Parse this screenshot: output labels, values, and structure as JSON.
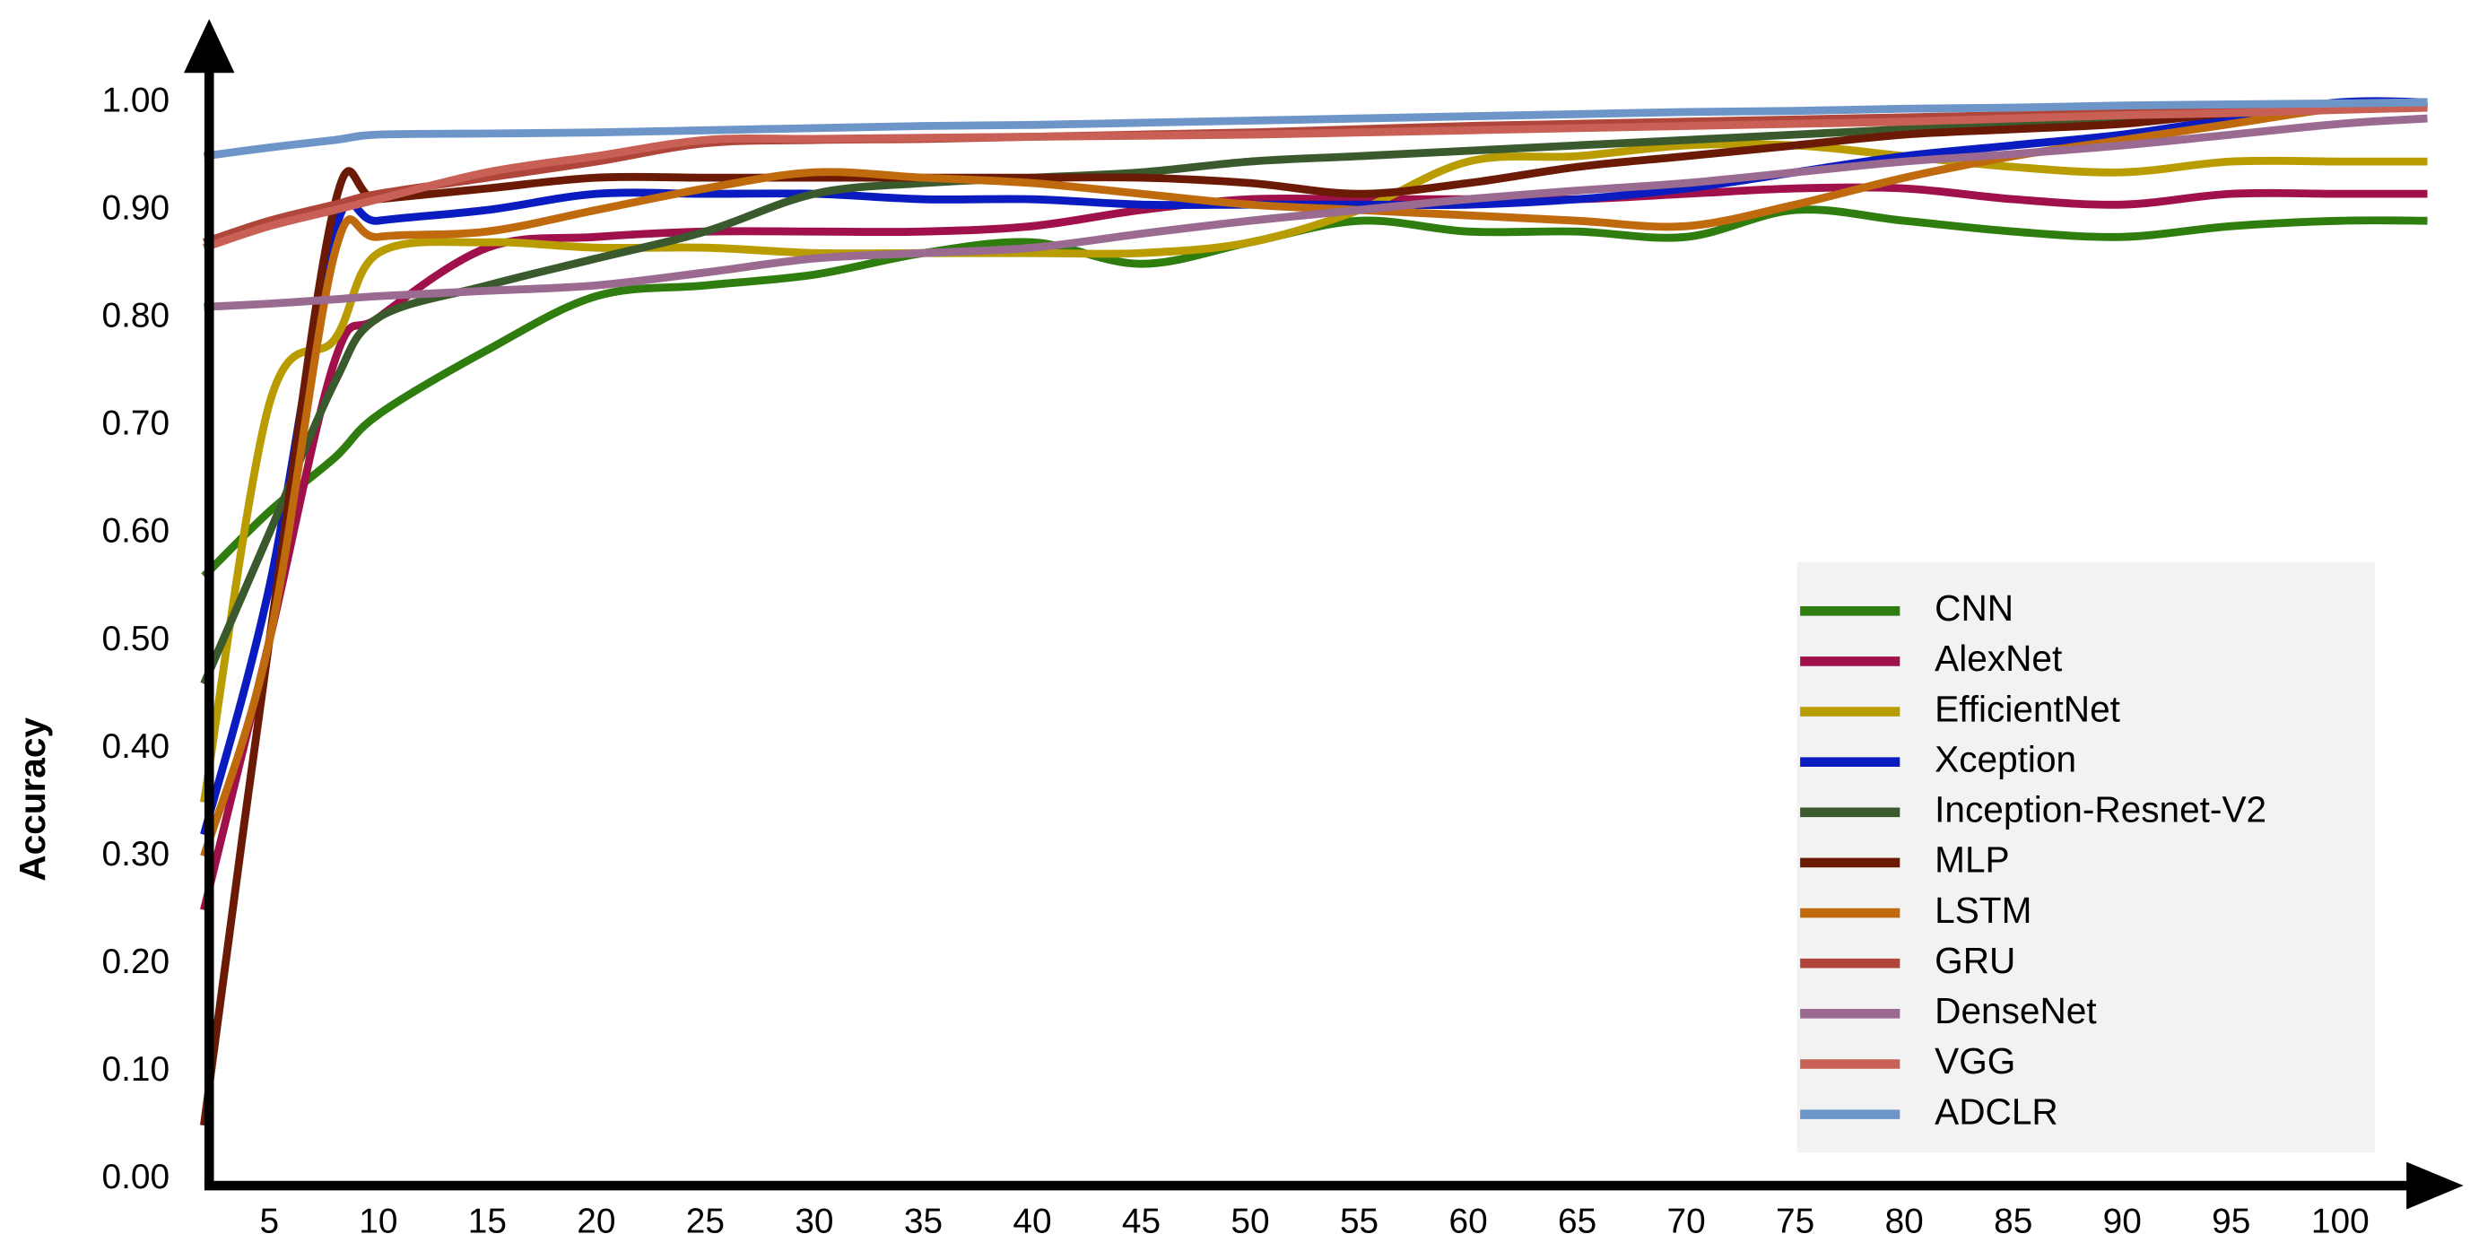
{
  "chart_data": {
    "type": "line",
    "ylabel": "Accuracy",
    "x": [
      2,
      5,
      8,
      10,
      15,
      20,
      25,
      30,
      35,
      40,
      45,
      50,
      55,
      60,
      65,
      70,
      75,
      80,
      85,
      90,
      95,
      100,
      104
    ],
    "xlim": [
      2.24,
      105
    ],
    "xticks": [
      5,
      10,
      15,
      20,
      25,
      30,
      35,
      40,
      45,
      50,
      55,
      60,
      65,
      70,
      75,
      80,
      85,
      90,
      95,
      100
    ],
    "ylim": [
      0,
      1.07
    ],
    "yticks": [
      {
        "value": 0,
        "label": "0.00"
      },
      {
        "value": 0.1,
        "label": "0.10"
      },
      {
        "value": 0.2,
        "label": "0.20"
      },
      {
        "value": 0.3,
        "label": "0.30"
      },
      {
        "value": 0.4,
        "label": "0.40"
      },
      {
        "value": 0.5,
        "label": "0.50"
      },
      {
        "value": 0.6,
        "label": "0.60"
      },
      {
        "value": 0.7,
        "label": "0.70"
      },
      {
        "value": 0.8,
        "label": "0.80"
      },
      {
        "value": 0.9,
        "label": "0.90"
      },
      {
        "value": 1,
        "label": "1.00"
      }
    ],
    "grid": false,
    "legend": "lower right",
    "series": [
      {
        "name": "CNN",
        "color": "#2e7d0e",
        "values": [
          0.56,
          0.62,
          0.67,
          0.71,
          0.77,
          0.82,
          0.83,
          0.84,
          0.86,
          0.87,
          0.85,
          0.87,
          0.89,
          0.88,
          0.88,
          0.875,
          0.9,
          0.89,
          0.88,
          0.875,
          0.885,
          0.89,
          0.89
        ]
      },
      {
        "name": "AlexNet",
        "color": "#a0104a",
        "values": [
          0.25,
          0.5,
          0.76,
          0.8,
          0.865,
          0.875,
          0.88,
          0.88,
          0.88,
          0.885,
          0.9,
          0.91,
          0.91,
          0.91,
          0.91,
          0.915,
          0.92,
          0.92,
          0.91,
          0.905,
          0.915,
          0.915,
          0.915
        ]
      },
      {
        "name": "EfficientNet",
        "color": "#b89c00",
        "values": [
          0.35,
          0.72,
          0.78,
          0.86,
          0.87,
          0.865,
          0.865,
          0.86,
          0.86,
          0.86,
          0.86,
          0.87,
          0.9,
          0.945,
          0.95,
          0.96,
          0.96,
          0.95,
          0.94,
          0.935,
          0.945,
          0.945,
          0.945
        ]
      },
      {
        "name": "Xception",
        "color": "#0a1cc0",
        "values": [
          0.32,
          0.55,
          0.88,
          0.89,
          0.9,
          0.915,
          0.915,
          0.915,
          0.91,
          0.91,
          0.905,
          0.905,
          0.905,
          0.905,
          0.91,
          0.92,
          0.935,
          0.95,
          0.96,
          0.97,
          0.985,
          1,
          1
        ]
      },
      {
        "name": "Inception-Resnet-V2",
        "color": "#3a5a2e",
        "values": [
          0.46,
          0.6,
          0.74,
          0.8,
          0.83,
          0.855,
          0.88,
          0.915,
          0.925,
          0.93,
          0.935,
          0.945,
          0.95,
          0.955,
          0.96,
          0.965,
          0.97,
          0.975,
          0.98,
          0.985,
          0.99,
          0.995,
          1
        ]
      },
      {
        "name": "MLP",
        "color": "#6b1a05",
        "values": [
          0.05,
          0.5,
          0.905,
          0.91,
          0.92,
          0.93,
          0.93,
          0.93,
          0.93,
          0.93,
          0.93,
          0.925,
          0.915,
          0.925,
          0.94,
          0.95,
          0.96,
          0.97,
          0.975,
          0.98,
          0.99,
          0.995,
          1
        ]
      },
      {
        "name": "LSTM",
        "color": "#c06a0e",
        "values": [
          0.3,
          0.5,
          0.86,
          0.875,
          0.88,
          0.9,
          0.92,
          0.935,
          0.93,
          0.925,
          0.915,
          0.905,
          0.9,
          0.895,
          0.89,
          0.885,
          0.905,
          0.93,
          0.95,
          0.965,
          0.98,
          0.995,
          1
        ]
      },
      {
        "name": "GRU",
        "color": "#b0453a",
        "values": [
          0.87,
          0.89,
          0.905,
          0.915,
          0.93,
          0.945,
          0.962,
          0.965,
          0.966,
          0.968,
          0.97,
          0.972,
          0.975,
          0.978,
          0.98,
          0.982,
          0.984,
          0.986,
          0.988,
          0.99,
          0.992,
          0.995,
          0.997
        ]
      },
      {
        "name": "DenseNet",
        "color": "#9a6a90",
        "values": [
          0.81,
          0.813,
          0.817,
          0.82,
          0.825,
          0.83,
          0.842,
          0.855,
          0.86,
          0.865,
          0.878,
          0.89,
          0.9,
          0.91,
          0.918,
          0.925,
          0.935,
          0.945,
          0.952,
          0.96,
          0.97,
          0.98,
          0.985
        ]
      },
      {
        "name": "VGG",
        "color": "#c86055",
        "values": [
          0.865,
          0.885,
          0.9,
          0.91,
          0.935,
          0.95,
          0.965,
          0.966,
          0.967,
          0.968,
          0.969,
          0.97,
          0.972,
          0.974,
          0.976,
          0.978,
          0.98,
          0.982,
          0.985,
          0.988,
          0.99,
          0.993,
          0.995
        ]
      },
      {
        "name": "ADCLR",
        "color": "#6e95c8",
        "values": [
          0.95,
          0.958,
          0.965,
          0.97,
          0.971,
          0.972,
          0.974,
          0.976,
          0.978,
          0.979,
          0.981,
          0.983,
          0.985,
          0.987,
          0.989,
          0.991,
          0.992,
          0.994,
          0.995,
          0.997,
          0.998,
          0.999,
          1
        ]
      }
    ]
  }
}
